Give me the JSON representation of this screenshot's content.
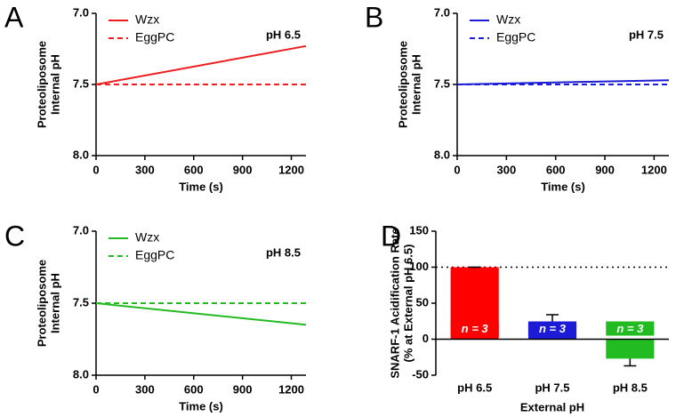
{
  "chart_data": [
    {
      "type": "line",
      "panel": "A",
      "annotation": "pH 6.5",
      "ylabel": [
        "Proteoliposome",
        "Internal pH"
      ],
      "xlabel": "Time (s)",
      "x": [
        0,
        1290
      ],
      "xlim": [
        0,
        1290
      ],
      "xticks": [
        0,
        300,
        600,
        900,
        1200
      ],
      "ylim": [
        8,
        7
      ],
      "yticks": [
        {
          "value": 7,
          "label": "7.0"
        },
        7.5,
        {
          "value": 8,
          "label": "8.0"
        }
      ],
      "series": [
        {
          "name": "Wzx",
          "color": "#ee1c1c",
          "linestyle": "solid",
          "values": [
            7.5,
            7.23
          ]
        },
        {
          "name": "EggPC",
          "color": "#ee1c1c",
          "linestyle": "dashed",
          "values": [
            7.5,
            7.5
          ]
        }
      ]
    },
    {
      "type": "line",
      "panel": "B",
      "annotation": "pH 7.5",
      "ylabel": [
        "Proteoliposome",
        "Internal pH"
      ],
      "xlabel": "Time (s)",
      "x": [
        0,
        1290
      ],
      "xlim": [
        0,
        1290
      ],
      "xticks": [
        0,
        300,
        600,
        900,
        1200
      ],
      "ylim": [
        8,
        7
      ],
      "yticks": [
        {
          "value": 7,
          "label": "7.0"
        },
        7.5,
        {
          "value": 8,
          "label": "8.0"
        }
      ],
      "series": [
        {
          "name": "Wzx",
          "color": "#1c1cd6",
          "linestyle": "solid",
          "values": [
            7.5,
            7.47
          ]
        },
        {
          "name": "EggPC",
          "color": "#1c1cd6",
          "linestyle": "dashed",
          "values": [
            7.5,
            7.5
          ]
        }
      ]
    },
    {
      "type": "line",
      "panel": "C",
      "annotation": "pH 8.5",
      "ylabel": [
        "Proteoliposome",
        "Internal pH"
      ],
      "xlabel": "Time (s)",
      "x": [
        0,
        1290
      ],
      "xlim": [
        0,
        1290
      ],
      "xticks": [
        0,
        300,
        600,
        900,
        1200
      ],
      "ylim": [
        8,
        7
      ],
      "yticks": [
        {
          "value": 7,
          "label": "7.0"
        },
        7.5,
        {
          "value": 8,
          "label": "8.0"
        }
      ],
      "series": [
        {
          "name": "Wzx",
          "color": "#22bb22",
          "linestyle": "solid",
          "values": [
            7.5,
            7.65
          ]
        },
        {
          "name": "EggPC",
          "color": "#22bb22",
          "linestyle": "dashed",
          "values": [
            7.5,
            7.5
          ]
        }
      ]
    },
    {
      "type": "bar",
      "panel": "D",
      "ylabel": [
        "SNARF-1 Acidification Rate",
        "(% at External pH 6.5)"
      ],
      "xlabel": "External pH",
      "categories": [
        "pH 6.5",
        "pH 7.5",
        "pH 8.5"
      ],
      "values": [
        100,
        21,
        -27
      ],
      "errors": [
        0,
        13,
        10
      ],
      "colors": [
        "#ff0000",
        "#1c1cd6",
        "#22bb22"
      ],
      "annotations": [
        "n = 3",
        "n = 3",
        "n = 3"
      ],
      "refline": 100,
      "ylim": [
        -50,
        150
      ],
      "yticks": [
        -50,
        0,
        50,
        100,
        150
      ]
    }
  ]
}
